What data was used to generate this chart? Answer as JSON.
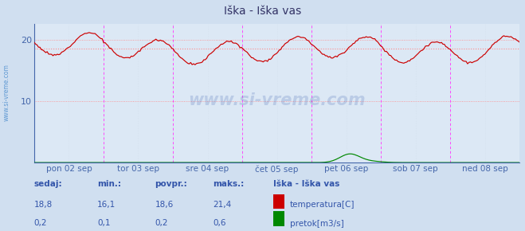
{
  "title": "Iška - Iška vas",
  "bg_color": "#d0dff0",
  "plot_bg_color": "#dce8f5",
  "grid_color_major": "#aabbcc",
  "grid_color_minor": "#c8d4e0",
  "temp_color": "#cc0000",
  "flow_color": "#008800",
  "avg_line_color": "#ff8888",
  "vline_color": "#ff44ff",
  "xlabel_color": "#4466aa",
  "ylabel_color": "#4466aa",
  "title_color": "#333366",
  "watermark_color": "#3355aa",
  "left_label_color": "#4488cc",
  "arrow_color": "#cc2222",
  "xlabels": [
    "pon 02 sep",
    "tor 03 sep",
    "sre 04 sep",
    "čet 05 sep",
    "pet 06 sep",
    "sob 07 sep",
    "ned 08 sep"
  ],
  "yticks": [
    10,
    20
  ],
  "ymin": 0,
  "ymax": 22.5,
  "avg_temp": 18.6,
  "n_days": 7,
  "samples_per_day": 48,
  "table_headers": [
    "sedaj:",
    "min.:",
    "povpr.:",
    "maks.:"
  ],
  "table_temp": [
    "18,8",
    "16,1",
    "18,6",
    "21,4"
  ],
  "table_flow": [
    "0,2",
    "0,1",
    "0,2",
    "0,6"
  ],
  "legend_title": "Iška - Iška vas",
  "legend_items": [
    "temperatura[C]",
    "pretok[m3/s]"
  ],
  "legend_colors": [
    "#cc0000",
    "#008800"
  ]
}
